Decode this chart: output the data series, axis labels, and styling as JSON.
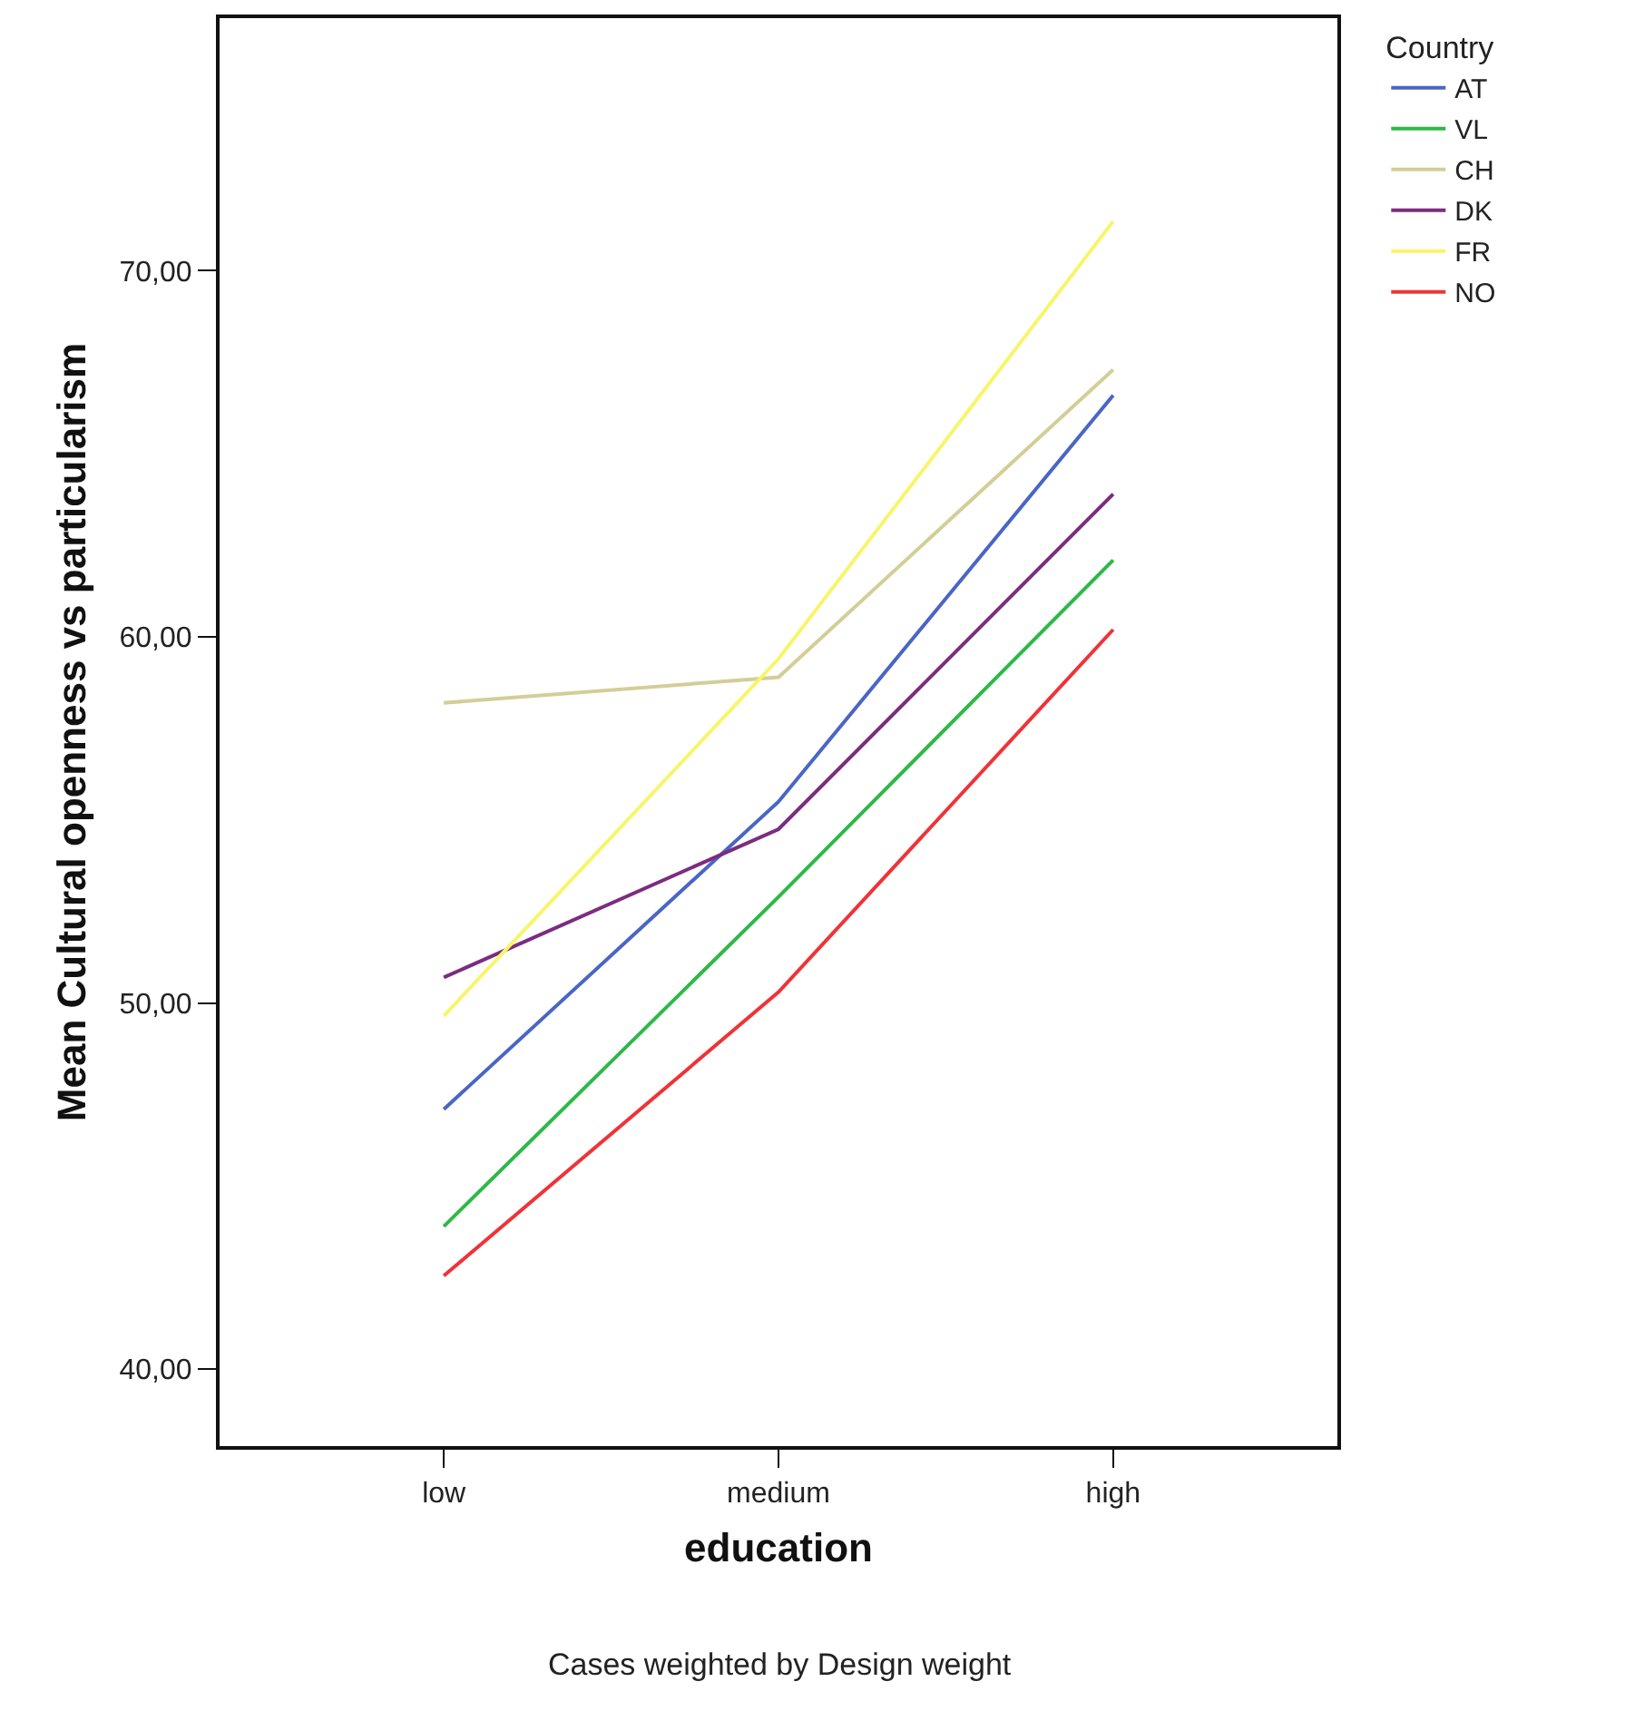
{
  "chart_data": {
    "type": "line",
    "xlabel": "education",
    "ylabel": "Mean Cultural openness vs particularism",
    "legend_title": "Country",
    "categories": [
      "low",
      "medium",
      "high"
    ],
    "series": [
      {
        "name": "AT",
        "color": "#4a66c4",
        "values": [
          47.1,
          55.5,
          66.6
        ]
      },
      {
        "name": "VL",
        "color": "#2eb848",
        "values": [
          43.9,
          52.9,
          62.1
        ]
      },
      {
        "name": "CH",
        "color": "#d3ce97",
        "values": [
          58.2,
          58.9,
          67.3
        ]
      },
      {
        "name": "DK",
        "color": "#7b2c80",
        "values": [
          50.7,
          54.75,
          63.9
        ]
      },
      {
        "name": "FR",
        "color": "#f8f56a",
        "values": [
          49.65,
          59.4,
          71.35
        ]
      },
      {
        "name": "NO",
        "color": "#ef3338",
        "values": [
          42.55,
          50.3,
          60.2
        ]
      }
    ],
    "ylim": [
      37.9,
      76.9
    ],
    "yticks": [
      {
        "value": 40,
        "label": "40,00"
      },
      {
        "value": 50,
        "label": "50,00"
      },
      {
        "value": 60,
        "label": "60,00"
      },
      {
        "value": 70,
        "label": "70,00"
      }
    ],
    "grid": false,
    "legend": "top right",
    "marker": "none",
    "line_style": "solid",
    "annotations": [
      "Cases weighted by Design weight"
    ]
  }
}
